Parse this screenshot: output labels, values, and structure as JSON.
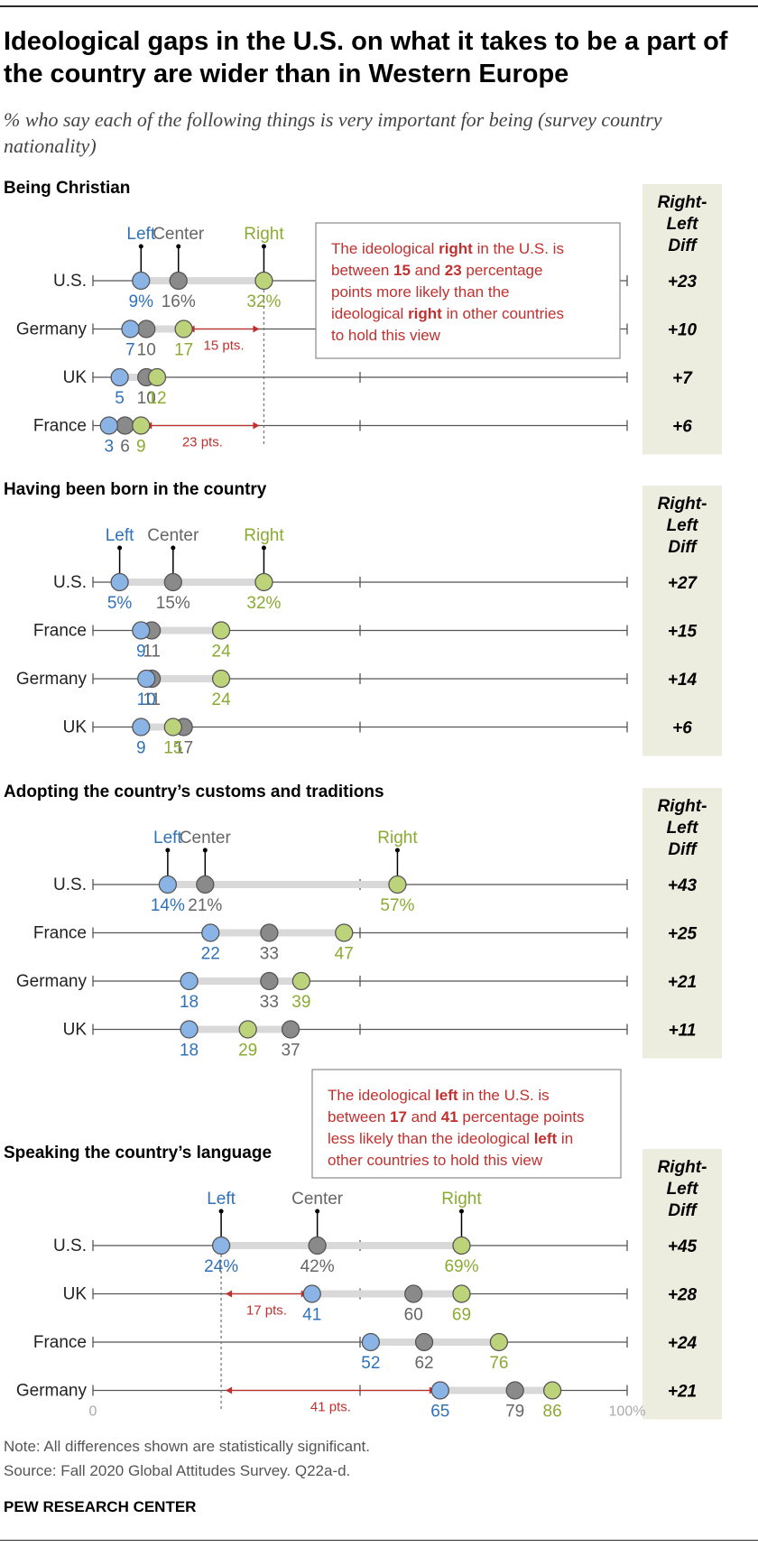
{
  "title": "Ideological gaps in the U.S. on what it takes to be a part of the country are wider than in Western Europe",
  "subtitle": "% who say each of the following things is very important for being (survey country nationality)",
  "diff_header": [
    "Right-",
    "Left",
    "Diff"
  ],
  "legend": {
    "left": "Left",
    "center": "Center",
    "right": "Right"
  },
  "colors": {
    "left": "#8ab4e6",
    "left_text": "#2f72b8",
    "center": "#8a8a8a",
    "center_text": "#666666",
    "right": "#bcd37a",
    "right_text": "#8aab32",
    "annotation": "#c0302e",
    "diff_panel": "#ececdf",
    "gap_bar": "#d9d9d9"
  },
  "annotations": [
    {
      "panel": 0,
      "segments": [
        [
          "The ideological ",
          false
        ],
        [
          "right",
          true
        ],
        [
          " in the U.S. is",
          false
        ],
        [
          "|",
          false
        ],
        [
          "between ",
          false
        ],
        [
          "15",
          true
        ],
        [
          " and ",
          false
        ],
        [
          "23",
          true
        ],
        [
          " percentage",
          false
        ],
        [
          "|",
          false
        ],
        [
          "points more likely than the",
          false
        ],
        [
          "|",
          false
        ],
        [
          "ideological ",
          false
        ],
        [
          "right",
          true
        ],
        [
          " in other countries",
          false
        ],
        [
          "|",
          false
        ],
        [
          "to hold this view",
          false
        ]
      ]
    },
    {
      "panel": 3,
      "segments": [
        [
          "The ideological ",
          false
        ],
        [
          "left",
          true
        ],
        [
          " in the U.S. is",
          false
        ],
        [
          "|",
          false
        ],
        [
          "between ",
          false
        ],
        [
          "17",
          true
        ],
        [
          " and ",
          false
        ],
        [
          "41",
          true
        ],
        [
          " percentage points",
          false
        ],
        [
          "|",
          false
        ],
        [
          "less likely than the ideological ",
          false
        ],
        [
          "left",
          true
        ],
        [
          " in",
          false
        ],
        [
          "|",
          false
        ],
        [
          "other countries to hold this view",
          false
        ]
      ]
    }
  ],
  "note": "Note: All differences shown are statistically significant.",
  "source": "Source: Fall 2020 Global Attitudes Survey. Q22a-d.",
  "brand": "PEW RESEARCH CENTER",
  "chart_data": {
    "type": "dot",
    "xlim": [
      0,
      100
    ],
    "x_tick_labels": [
      "0",
      "100%"
    ],
    "panels": [
      {
        "title": "Being Christian",
        "rows": [
          {
            "country": "U.S.",
            "left": 9,
            "center": 16,
            "right": 32,
            "diff": "+23",
            "labels": [
              "9%",
              "16%",
              "32%"
            ]
          },
          {
            "country": "Germany",
            "left": 7,
            "center": 10,
            "right": 17,
            "diff": "+10",
            "labels": [
              "7",
              "10",
              "17"
            ],
            "gap": {
              "from": 17,
              "to": 32,
              "label": "15 pts."
            }
          },
          {
            "country": "UK",
            "left": 5,
            "center": 10,
            "right": 12,
            "diff": "+7",
            "labels": [
              "5",
              "10",
              "12"
            ]
          },
          {
            "country": "France",
            "left": 3,
            "center": 6,
            "right": 9,
            "diff": "+6",
            "labels": [
              "3",
              "6",
              "9"
            ],
            "gap": {
              "from": 9,
              "to": 32,
              "label": "23 pts."
            }
          }
        ]
      },
      {
        "title": "Having been born in the country",
        "rows": [
          {
            "country": "U.S.",
            "left": 5,
            "center": 15,
            "right": 32,
            "diff": "+27",
            "labels": [
              "5%",
              "15%",
              "32%"
            ]
          },
          {
            "country": "France",
            "left": 9,
            "center": 11,
            "right": 24,
            "diff": "+15",
            "labels": [
              "9",
              "11",
              "24"
            ]
          },
          {
            "country": "Germany",
            "left": 10,
            "center": 11,
            "right": 24,
            "diff": "+14",
            "labels": [
              "10",
              "11",
              "24"
            ]
          },
          {
            "country": "UK",
            "left": 9,
            "center": 17,
            "right": 15,
            "diff": "+6",
            "labels": [
              "9",
              "17",
              "15"
            ]
          }
        ]
      },
      {
        "title": "Adopting the country’s customs and traditions",
        "rows": [
          {
            "country": "U.S.",
            "left": 14,
            "center": 21,
            "right": 57,
            "diff": "+43",
            "labels": [
              "14%",
              "21%",
              "57%"
            ]
          },
          {
            "country": "France",
            "left": 22,
            "center": 33,
            "right": 47,
            "diff": "+25",
            "labels": [
              "22",
              "33",
              "47"
            ]
          },
          {
            "country": "Germany",
            "left": 18,
            "center": 33,
            "right": 39,
            "diff": "+21",
            "labels": [
              "18",
              "33",
              "39"
            ]
          },
          {
            "country": "UK",
            "left": 18,
            "center": 37,
            "right": 29,
            "diff": "+11",
            "labels": [
              "18",
              "37",
              "29"
            ]
          }
        ]
      },
      {
        "title": "Speaking the country’s language",
        "rows": [
          {
            "country": "U.S.",
            "left": 24,
            "center": 42,
            "right": 69,
            "diff": "+45",
            "labels": [
              "24%",
              "42%",
              "69%"
            ]
          },
          {
            "country": "UK",
            "left": 41,
            "center": 60,
            "right": 69,
            "diff": "+28",
            "labels": [
              "41",
              "60",
              "69"
            ],
            "gap": {
              "from": 24,
              "to": 41,
              "label": "17 pts."
            }
          },
          {
            "country": "France",
            "left": 52,
            "center": 62,
            "right": 76,
            "diff": "+24",
            "labels": [
              "52",
              "62",
              "76"
            ]
          },
          {
            "country": "Germany",
            "left": 65,
            "center": 79,
            "right": 86,
            "diff": "+21",
            "labels": [
              "65",
              "79",
              "86"
            ],
            "gap": {
              "from": 24,
              "to": 65,
              "label": "41 pts."
            }
          }
        ]
      }
    ]
  }
}
